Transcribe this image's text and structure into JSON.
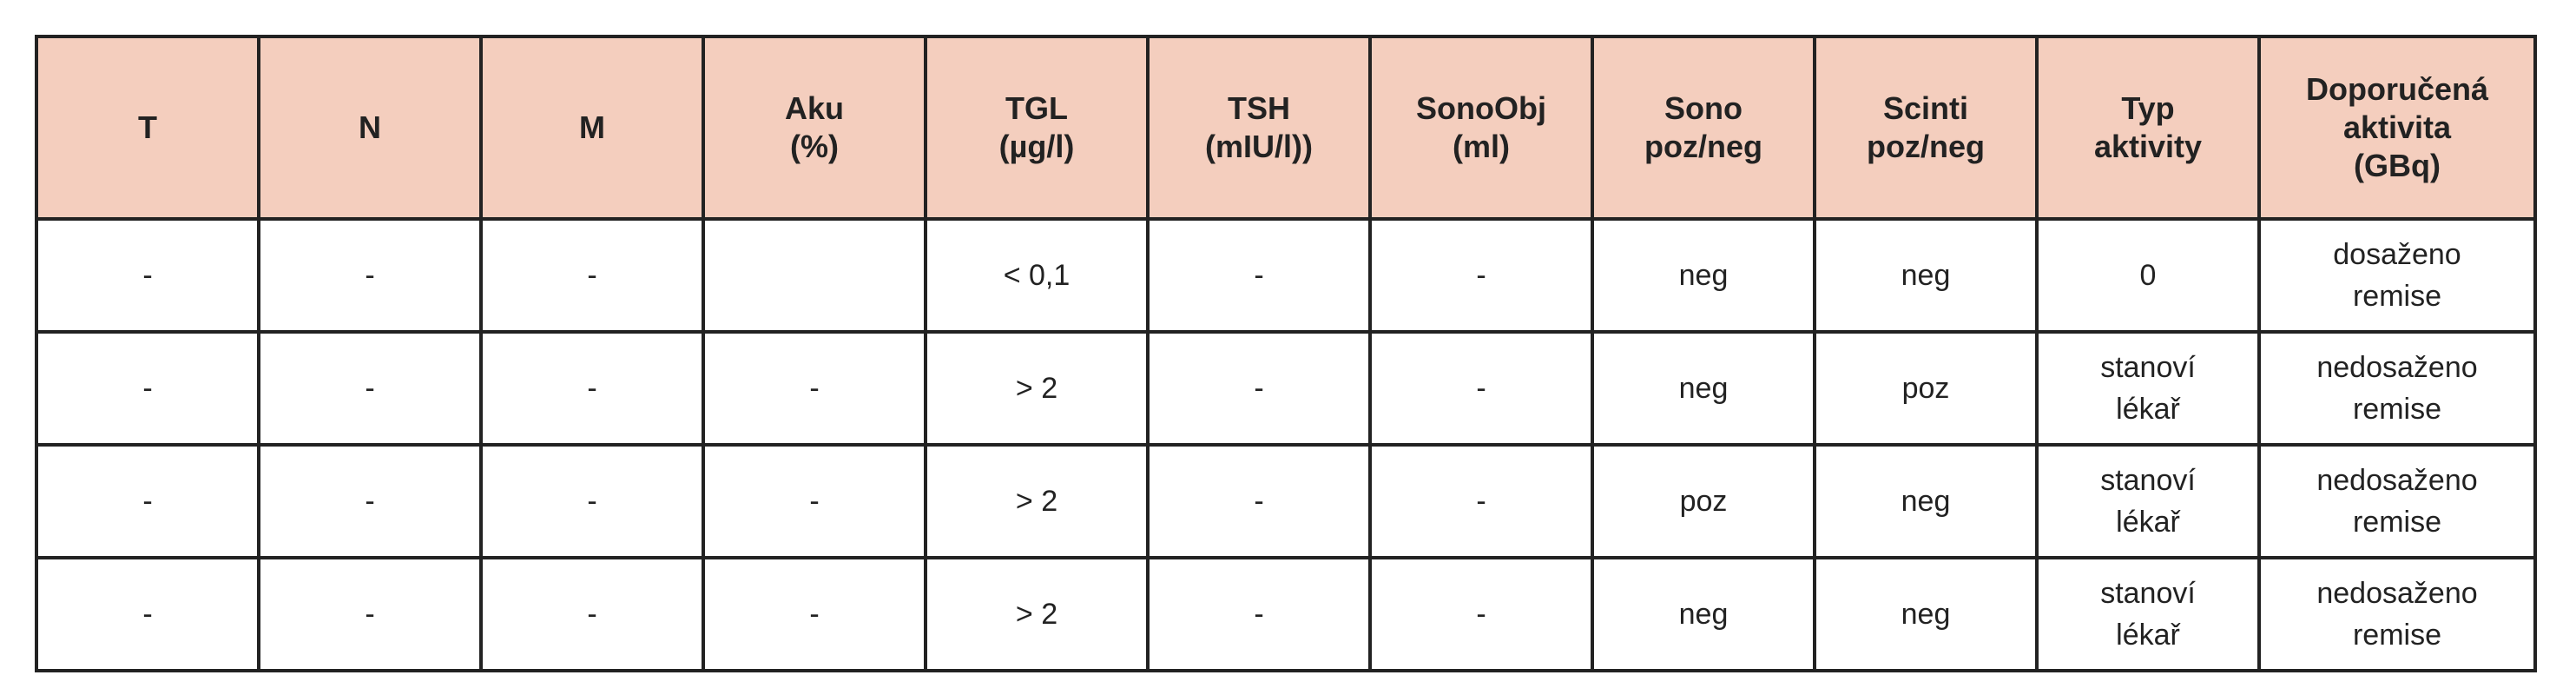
{
  "table": {
    "header": [
      [
        "T"
      ],
      [
        "N"
      ],
      [
        "M"
      ],
      [
        "Aku",
        "(%)"
      ],
      [
        "TGL",
        "(µg/l)"
      ],
      [
        "TSH",
        "(mIU/l))"
      ],
      [
        "SonoObj",
        "(ml)"
      ],
      [
        "Sono",
        "poz/neg"
      ],
      [
        "Scinti",
        "poz/neg"
      ],
      [
        "Typ",
        "aktivity"
      ],
      [
        "Doporučená",
        "aktivita",
        "(GBq)"
      ]
    ],
    "rows": [
      [
        [
          "-"
        ],
        [
          "-"
        ],
        [
          "-"
        ],
        [],
        [
          "< 0,1"
        ],
        [
          "-"
        ],
        [
          "-"
        ],
        [
          "neg"
        ],
        [
          "neg"
        ],
        [
          "0"
        ],
        [
          "dosaženo",
          "remise"
        ]
      ],
      [
        [
          "-"
        ],
        [
          "-"
        ],
        [
          "-"
        ],
        [
          "-"
        ],
        [
          "> 2"
        ],
        [
          "-"
        ],
        [
          "-"
        ],
        [
          "neg"
        ],
        [
          "poz"
        ],
        [
          "stanoví",
          "lékař"
        ],
        [
          "nedosaženo",
          "remise"
        ]
      ],
      [
        [
          "-"
        ],
        [
          "-"
        ],
        [
          "-"
        ],
        [
          "-"
        ],
        [
          "> 2"
        ],
        [
          "-"
        ],
        [
          "-"
        ],
        [
          "poz"
        ],
        [
          "neg"
        ],
        [
          "stanoví",
          "lékař"
        ],
        [
          "nedosaženo",
          "remise"
        ]
      ],
      [
        [
          "-"
        ],
        [
          "-"
        ],
        [
          "-"
        ],
        [
          "-"
        ],
        [
          "> 2"
        ],
        [
          "-"
        ],
        [
          "-"
        ],
        [
          "neg"
        ],
        [
          "neg"
        ],
        [
          "stanoví",
          "lékař"
        ],
        [
          "nedosaženo",
          "remise"
        ]
      ]
    ]
  }
}
